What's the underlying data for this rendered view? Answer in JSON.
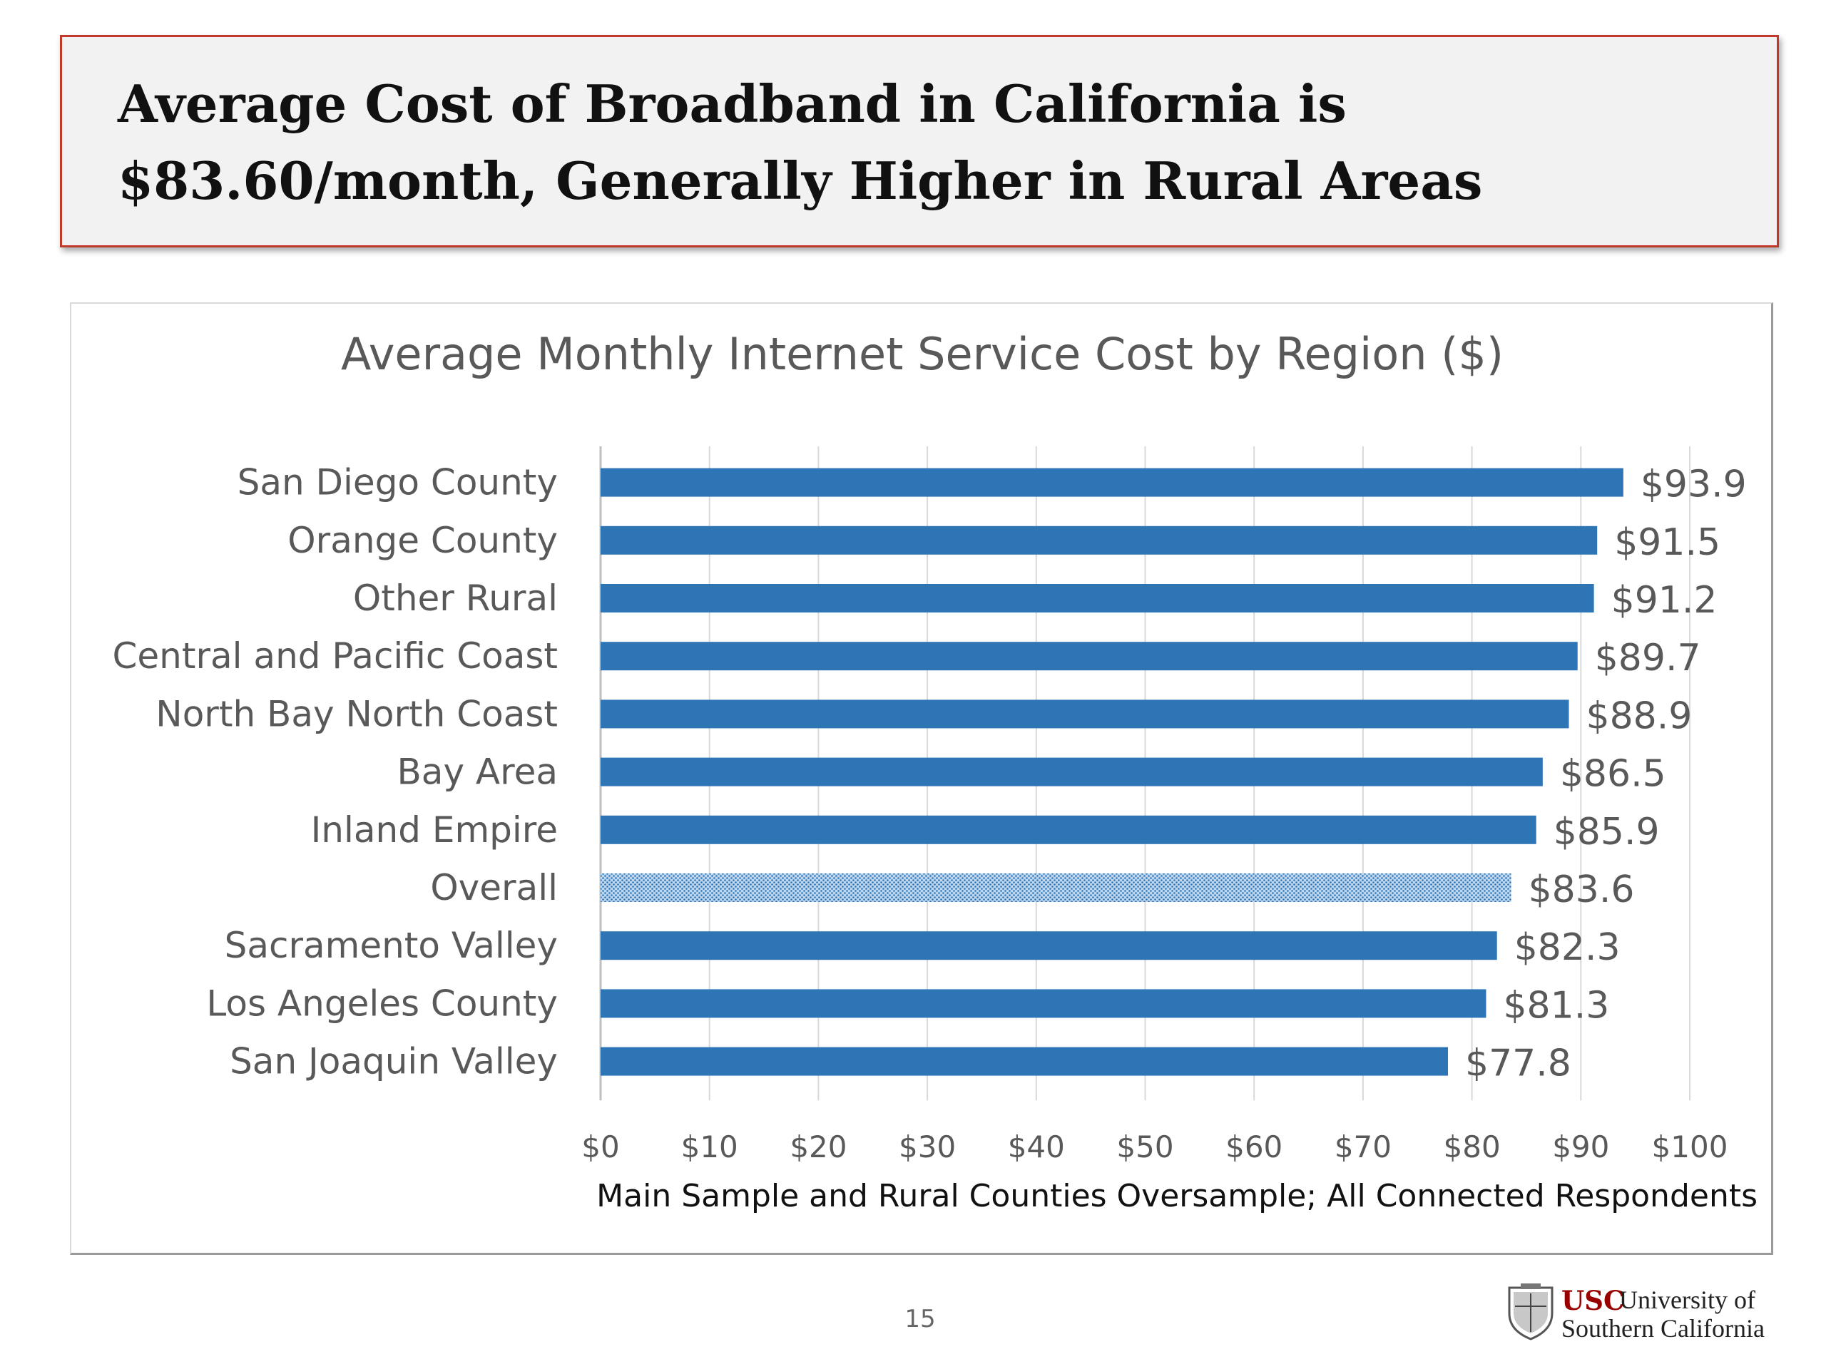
{
  "slide": {
    "title": "Average Cost of Broadband in California is $83.60/month, Generally Higher in Rural Areas",
    "page_number": "15"
  },
  "logo": {
    "abbr": "USC",
    "line1": "University of",
    "line2": "Southern California",
    "icon": "usc-seal-icon"
  },
  "chart_data": {
    "type": "bar",
    "orientation": "horizontal",
    "title": "Average Monthly Internet Service Cost by Region ($)",
    "footnote": "Main Sample and Rural Counties Oversample; All Connected Respondents",
    "categories": [
      "San Diego County",
      "Orange County",
      "Other Rural",
      "Central and Pacific Coast",
      "North Bay North Coast",
      "Bay Area",
      "Inland Empire",
      "Overall",
      "Sacramento Valley",
      "Los Angeles County",
      "San Joaquin Valley"
    ],
    "values": [
      93.9,
      91.5,
      91.2,
      89.7,
      88.9,
      86.5,
      85.9,
      83.6,
      82.3,
      81.3,
      77.8
    ],
    "data_labels": [
      "$93.9",
      "$91.5",
      "$91.2",
      "$89.7",
      "$88.9",
      "$86.5",
      "$85.9",
      "$83.6",
      "$82.3",
      "$81.3",
      "$77.8"
    ],
    "highlight_category": "Overall",
    "xlim": [
      0,
      100
    ],
    "xticks": [
      0,
      10,
      20,
      30,
      40,
      50,
      60,
      70,
      80,
      90,
      100
    ],
    "xtick_labels": [
      "$0",
      "$10",
      "$20",
      "$30",
      "$40",
      "$50",
      "$60",
      "$70",
      "$80",
      "$90",
      "$100"
    ],
    "grid": true,
    "legend": "none",
    "bar_color": "#2e75b6",
    "highlight_color": "#9dc3e6"
  }
}
